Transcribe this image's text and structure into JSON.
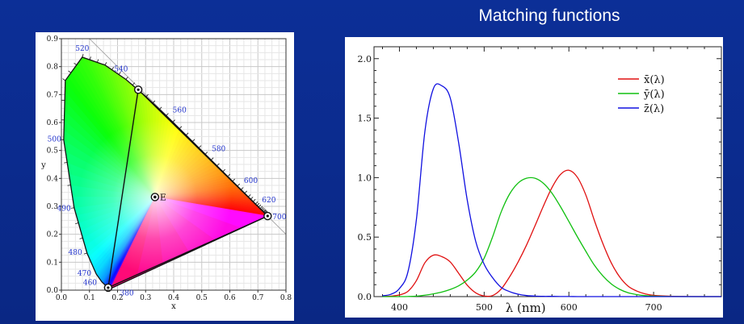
{
  "slide": {
    "title": "Matching functions"
  },
  "chart_data": [
    {
      "type": "scatter",
      "subtype": "chromaticity-diagram",
      "xlabel": "x",
      "ylabel": "y",
      "xlim": [
        0.0,
        0.8
      ],
      "ylim": [
        0.0,
        0.9
      ],
      "x_ticks": [
        "0.0",
        "0.1",
        "0.2",
        "0.3",
        "0.4",
        "0.5",
        "0.6",
        "0.7",
        "0.8"
      ],
      "y_ticks": [
        "0.0",
        "0.1",
        "0.2",
        "0.3",
        "0.4",
        "0.5",
        "0.6",
        "0.7",
        "0.8",
        "0.9"
      ],
      "grid": true,
      "locus": [
        [
          0.1741,
          0.005
        ],
        [
          0.1733,
          0.0048
        ],
        [
          0.1726,
          0.0048
        ],
        [
          0.1714,
          0.0051
        ],
        [
          0.1689,
          0.0069
        ],
        [
          0.1644,
          0.0109
        ],
        [
          0.1566,
          0.0177
        ],
        [
          0.144,
          0.0297
        ],
        [
          0.1241,
          0.0578
        ],
        [
          0.0913,
          0.1327
        ],
        [
          0.0454,
          0.295
        ],
        [
          0.0082,
          0.5384
        ],
        [
          0.0139,
          0.7502
        ],
        [
          0.0743,
          0.8338
        ],
        [
          0.1547,
          0.8059
        ],
        [
          0.2296,
          0.7543
        ],
        [
          0.3016,
          0.6923
        ],
        [
          0.3731,
          0.6245
        ],
        [
          0.4441,
          0.5547
        ],
        [
          0.5125,
          0.4866
        ],
        [
          0.5752,
          0.4242
        ],
        [
          0.627,
          0.3725
        ],
        [
          0.6658,
          0.334
        ],
        [
          0.6915,
          0.3083
        ],
        [
          0.7079,
          0.292
        ],
        [
          0.719,
          0.2809
        ],
        [
          0.726,
          0.274
        ],
        [
          0.7347,
          0.2653
        ]
      ],
      "wavelength_labels": [
        {
          "label": "380",
          "x": 0.1741,
          "y": 0.005
        },
        {
          "label": "460",
          "x": 0.144,
          "y": 0.0297
        },
        {
          "label": "470",
          "x": 0.1241,
          "y": 0.0578
        },
        {
          "label": "480",
          "x": 0.0913,
          "y": 0.1327
        },
        {
          "label": "490",
          "x": 0.0454,
          "y": 0.295
        },
        {
          "label": "500",
          "x": 0.0082,
          "y": 0.5384
        },
        {
          "label": "520",
          "x": 0.0743,
          "y": 0.8338
        },
        {
          "label": "540",
          "x": 0.2296,
          "y": 0.7543
        },
        {
          "label": "560",
          "x": 0.3731,
          "y": 0.6245
        },
        {
          "label": "580",
          "x": 0.5125,
          "y": 0.4866
        },
        {
          "label": "600",
          "x": 0.627,
          "y": 0.3725
        },
        {
          "label": "620",
          "x": 0.6915,
          "y": 0.3083
        },
        {
          "label": "700",
          "x": 0.7347,
          "y": 0.2653
        }
      ],
      "gamut_triangle": [
        [
          0.7347,
          0.2653
        ],
        [
          0.2738,
          0.7174
        ],
        [
          0.1666,
          0.0089
        ]
      ],
      "points": [
        {
          "label": "E",
          "x": 0.3333,
          "y": 0.3333
        }
      ]
    },
    {
      "type": "line",
      "xlabel": "λ (nm)",
      "xlim": [
        370,
        780
      ],
      "ylim": [
        0.0,
        2.1
      ],
      "x_ticks": [
        "400",
        "500",
        "600",
        "700"
      ],
      "y_ticks": [
        "0.0",
        "0.5",
        "1.0",
        "1.5",
        "2.0"
      ],
      "grid": false,
      "legend_position": "top-right",
      "x": [
        380,
        390,
        400,
        410,
        420,
        430,
        440,
        450,
        460,
        470,
        480,
        490,
        500,
        510,
        520,
        530,
        540,
        550,
        560,
        570,
        580,
        590,
        600,
        610,
        620,
        630,
        640,
        650,
        660,
        670,
        680,
        690,
        700,
        720,
        740,
        760,
        780
      ],
      "series": [
        {
          "name": "x̄(λ)",
          "color": "#e01010",
          "values": [
            0.001,
            0.004,
            0.014,
            0.044,
            0.134,
            0.284,
            0.348,
            0.336,
            0.291,
            0.195,
            0.096,
            0.032,
            0.005,
            0.009,
            0.063,
            0.166,
            0.29,
            0.433,
            0.595,
            0.762,
            0.916,
            1.026,
            1.062,
            1.003,
            0.854,
            0.642,
            0.448,
            0.284,
            0.165,
            0.087,
            0.047,
            0.023,
            0.011,
            0.003,
            0.001,
            0.0,
            0.0
          ]
        },
        {
          "name": "ȳ(λ)",
          "color": "#10c010",
          "values": [
            0.0,
            0.0,
            0.0,
            0.001,
            0.004,
            0.012,
            0.023,
            0.038,
            0.06,
            0.091,
            0.139,
            0.208,
            0.323,
            0.503,
            0.71,
            0.862,
            0.954,
            0.995,
            0.995,
            0.952,
            0.87,
            0.757,
            0.631,
            0.503,
            0.381,
            0.265,
            0.175,
            0.107,
            0.061,
            0.032,
            0.017,
            0.008,
            0.004,
            0.001,
            0.0,
            0.0,
            0.0
          ]
        },
        {
          "name": "z̄(λ)",
          "color": "#1010e0",
          "values": [
            0.007,
            0.02,
            0.068,
            0.207,
            0.646,
            1.386,
            1.747,
            1.772,
            1.669,
            1.288,
            0.813,
            0.465,
            0.272,
            0.158,
            0.078,
            0.042,
            0.02,
            0.009,
            0.004,
            0.002,
            0.002,
            0.001,
            0.001,
            0.0,
            0.0,
            0.0,
            0.0,
            0.0,
            0.0,
            0.0,
            0.0,
            0.0,
            0.0,
            0.0,
            0.0,
            0.0,
            0.0
          ]
        }
      ]
    }
  ]
}
